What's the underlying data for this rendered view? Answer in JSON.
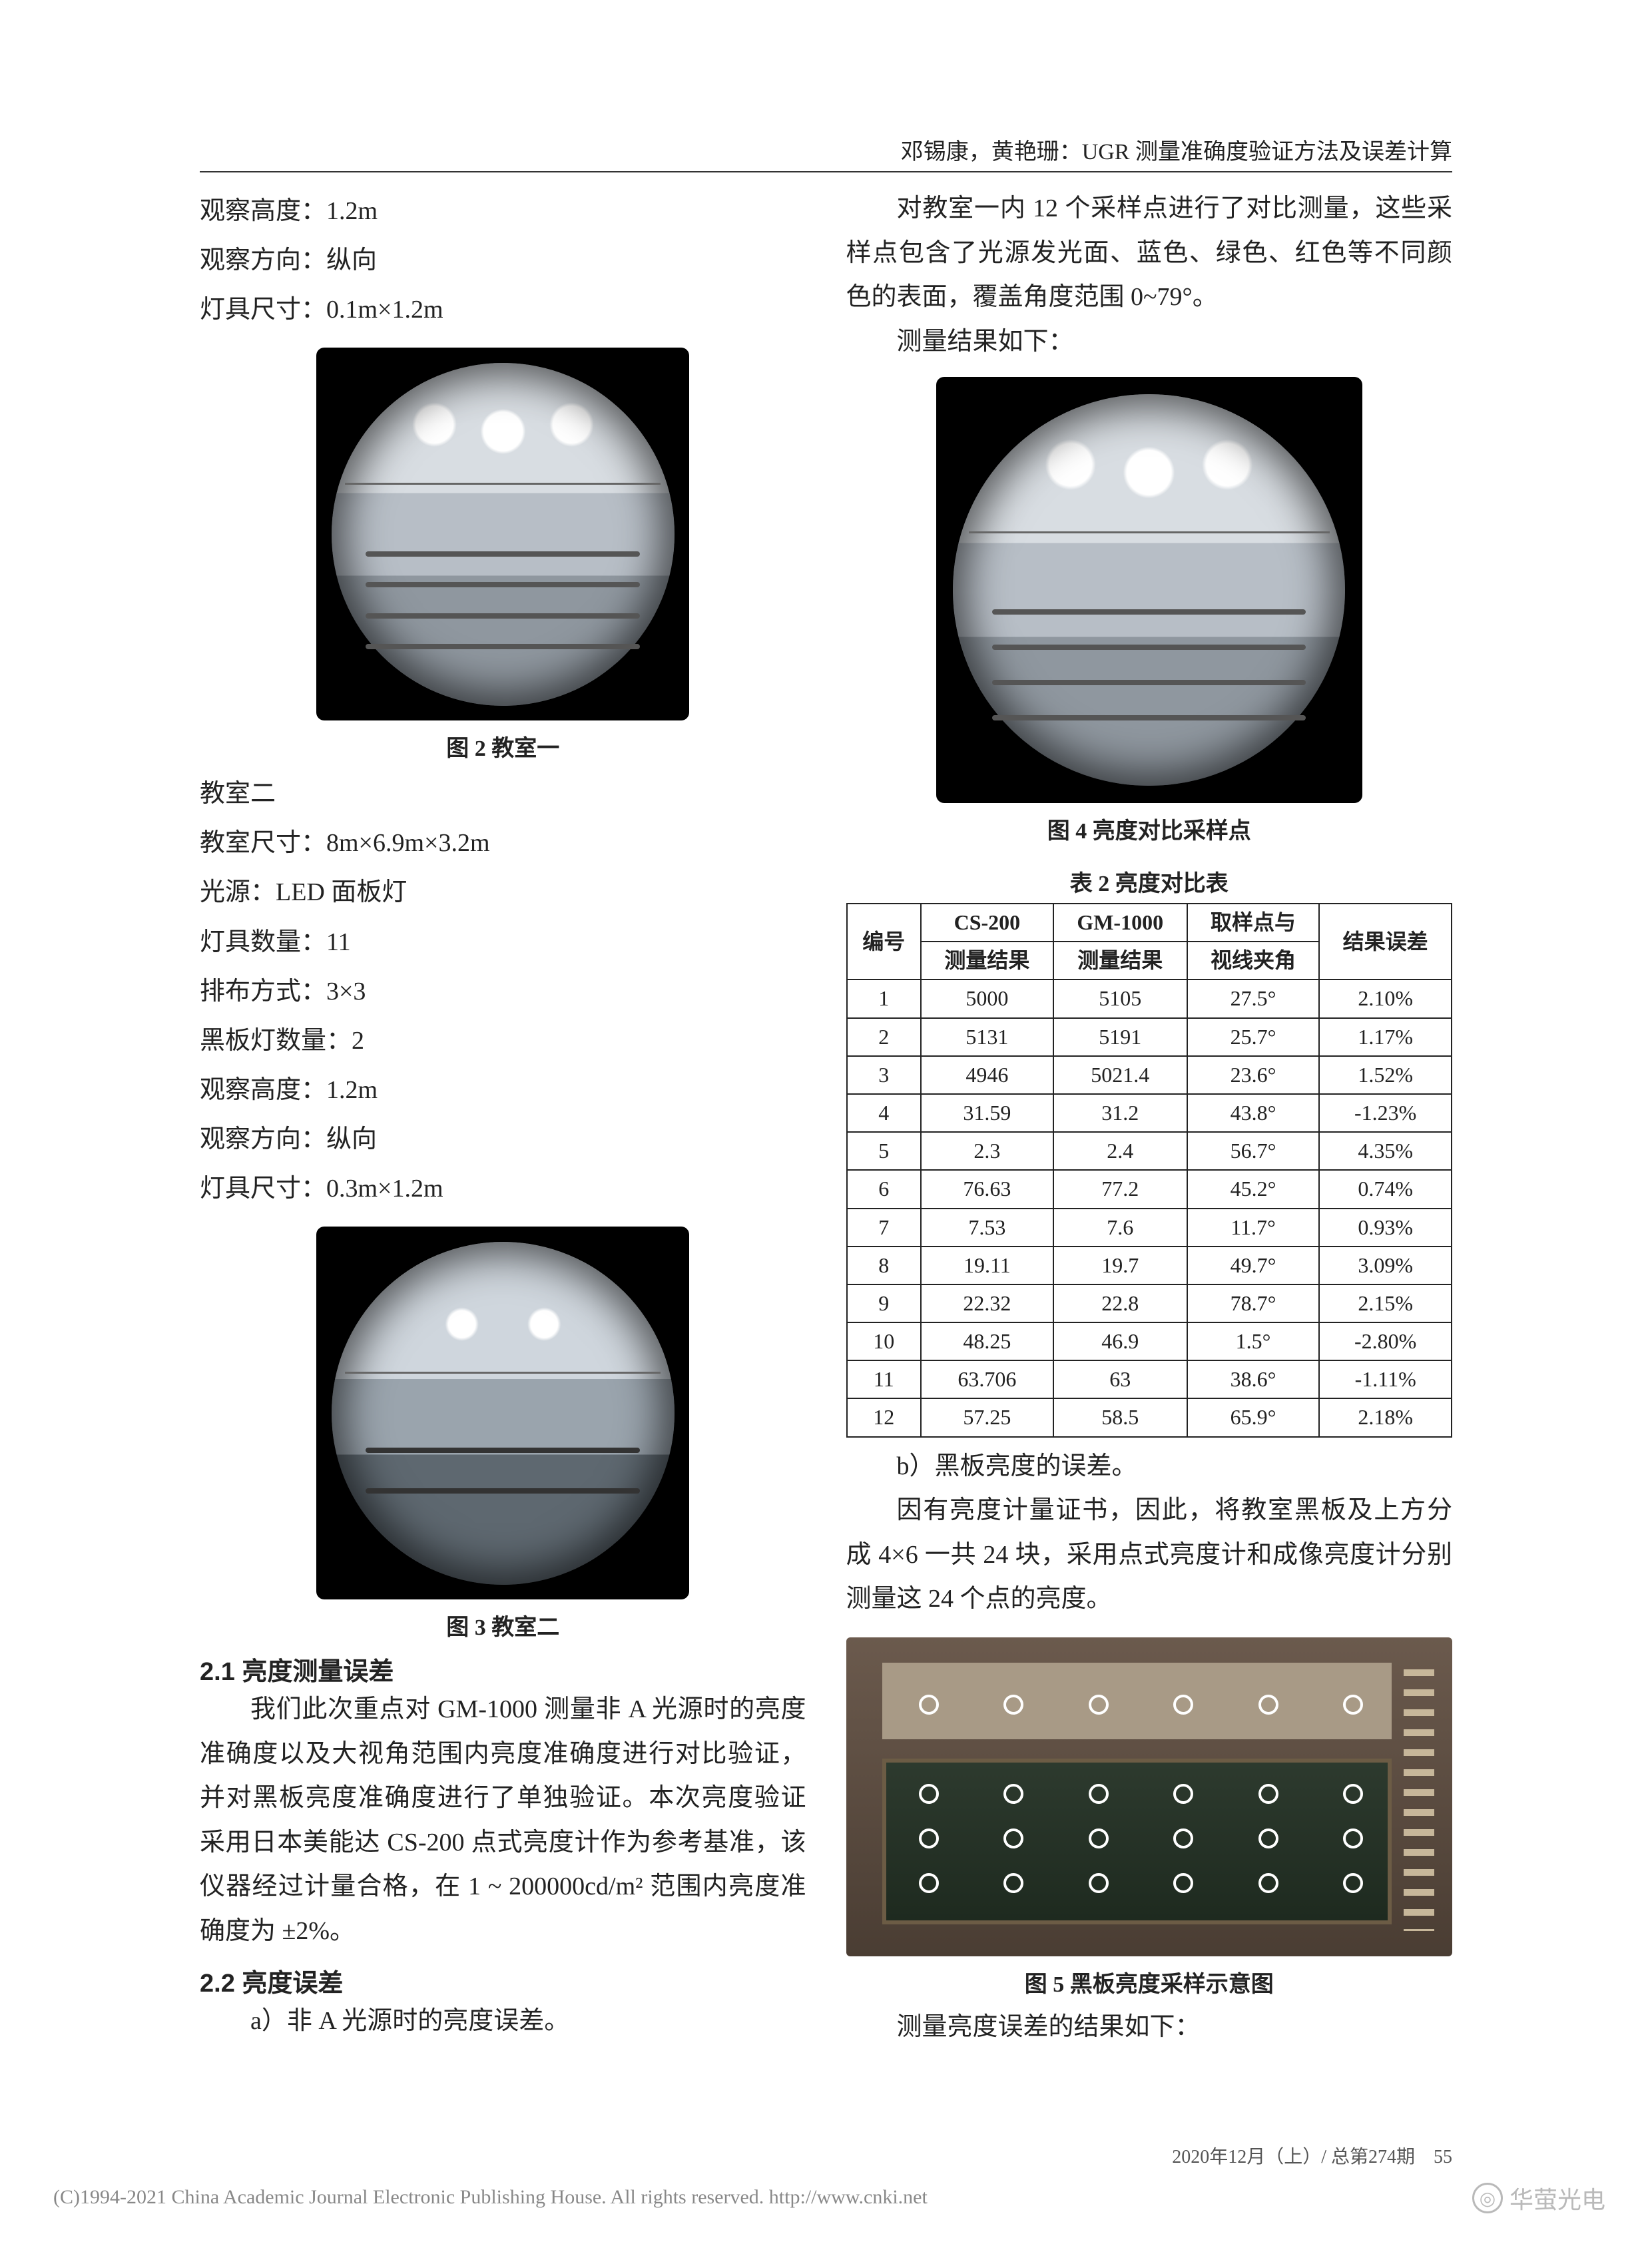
{
  "running_head": "邓锡康，黄艳珊：UGR 测量准确度验证方法及误差计算",
  "left": {
    "classroom1_params": {
      "obs_height": "观察高度：1.2m",
      "obs_dir": "观察方向：纵向",
      "lum_size": "灯具尺寸：0.1m×1.2m"
    },
    "fig2_caption": "图 2 教室一",
    "classroom2_title": "教室二",
    "classroom2_params": {
      "room_size": "教室尺寸：8m×6.9m×3.2m",
      "source": "光源：LED 面板灯",
      "lum_count": "灯具数量：11",
      "layout": "排布方式：3×3",
      "bb_count": "黑板灯数量：2",
      "obs_height": "观察高度：1.2m",
      "obs_dir": "观察方向：纵向",
      "lum_size": "灯具尺寸：0.3m×1.2m"
    },
    "fig3_caption": "图 3 教室二",
    "sec21_title": "2.1 亮度测量误差",
    "sec21_para": "我们此次重点对 GM-1000 测量非 A 光源时的亮度准确度以及大视角范围内亮度准确度进行对比验证，并对黑板亮度准确度进行了单独验证。本次亮度验证采用日本美能达 CS-200 点式亮度计作为参考基准，该仪器经过计量合格，在 1 ~ 200000cd/m² 范围内亮度准确度为 ±2%。",
    "sec22_title": "2.2 亮度误差",
    "sec22_a": "a）非 A 光源时的亮度误差。"
  },
  "right": {
    "intro_para": "对教室一内 12 个采样点进行了对比测量，这些采样点包含了光源发光面、蓝色、绿色、红色等不同颜色的表面，覆盖角度范围 0~79°。",
    "result_line": "测量结果如下：",
    "fig4_caption": "图 4 亮度对比采样点",
    "table2_caption": "表 2 亮度对比表",
    "table2_headers": {
      "c1": "编号",
      "c2a": "CS-200",
      "c2b": "测量结果",
      "c3a": "GM-1000",
      "c3b": "测量结果",
      "c4a": "取样点与",
      "c4b": "视线夹角",
      "c5": "结果误差"
    },
    "table2_rows": [
      {
        "n": "1",
        "cs": "5000",
        "gm": "5105",
        "ang": "27.5°",
        "err": "2.10%"
      },
      {
        "n": "2",
        "cs": "5131",
        "gm": "5191",
        "ang": "25.7°",
        "err": "1.17%"
      },
      {
        "n": "3",
        "cs": "4946",
        "gm": "5021.4",
        "ang": "23.6°",
        "err": "1.52%"
      },
      {
        "n": "4",
        "cs": "31.59",
        "gm": "31.2",
        "ang": "43.8°",
        "err": "-1.23%"
      },
      {
        "n": "5",
        "cs": "2.3",
        "gm": "2.4",
        "ang": "56.7°",
        "err": "4.35%"
      },
      {
        "n": "6",
        "cs": "76.63",
        "gm": "77.2",
        "ang": "45.2°",
        "err": "0.74%"
      },
      {
        "n": "7",
        "cs": "7.53",
        "gm": "7.6",
        "ang": "11.7°",
        "err": "0.93%"
      },
      {
        "n": "8",
        "cs": "19.11",
        "gm": "19.7",
        "ang": "49.7°",
        "err": "3.09%"
      },
      {
        "n": "9",
        "cs": "22.32",
        "gm": "22.8",
        "ang": "78.7°",
        "err": "2.15%"
      },
      {
        "n": "10",
        "cs": "48.25",
        "gm": "46.9",
        "ang": "1.5°",
        "err": "-2.80%"
      },
      {
        "n": "11",
        "cs": "63.706",
        "gm": "63",
        "ang": "38.6°",
        "err": "-1.11%"
      },
      {
        "n": "12",
        "cs": "57.25",
        "gm": "58.5",
        "ang": "65.9°",
        "err": "2.18%"
      }
    ],
    "sec_b_title": "b）黑板亮度的误差。",
    "sec_b_para": "因有亮度计量证书，因此，将教室黑板及上方分成 4×6 一共 24 块，采用点式亮度计和成像亮度计分别测量这 24 个点的亮度。",
    "fig5_caption": "图 5 黑板亮度采样示意图",
    "result_line2": "测量亮度误差的结果如下："
  },
  "blackboard_dots": {
    "cols_pct": [
      12,
      26,
      40,
      54,
      68,
      82
    ],
    "top_row_pct": 18,
    "board_rows_pct": [
      46,
      60,
      74
    ]
  },
  "footer": {
    "left": "2020年12月（上）/ 总第274期",
    "right_page": "55",
    "copyright": "(C)1994-2021 China Academic Journal Electronic Publishing House. All rights reserved.   http://www.cnki.net",
    "watermark": "华萤光电"
  }
}
